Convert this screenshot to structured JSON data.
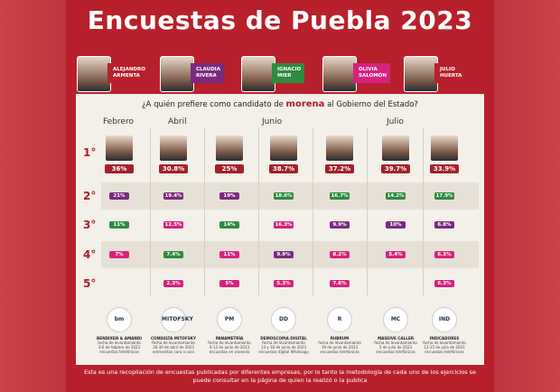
{
  "title": "Encuestas de Puebla 2023",
  "candidates": [
    {
      "name": "ALEJANDRO\nARMENTA",
      "color": "#b8202b"
    },
    {
      "name": "CLAUDIA\nRIVERA",
      "color": "#7a2a7e"
    },
    {
      "name": "IGNACIO\nMIER",
      "color": "#2e8b3e"
    },
    {
      "name": "OLIVIA\nSALOMÓN",
      "color": "#d6227f"
    },
    {
      "name": "JULIO\nHUERTA",
      "color": "#b8202b"
    }
  ],
  "question": {
    "pre": "¿A quién prefiere como candidato de ",
    "party": "morena",
    "post": " al Gobierno del Estado?"
  },
  "months": [
    "Febrero",
    "Abril",
    "Junio",
    "Julio"
  ],
  "ranks": [
    "1°",
    "2°",
    "3°",
    "4°",
    "5°"
  ],
  "columns": [
    {
      "first": "36%",
      "second": "21%",
      "third": "11%",
      "fourth": "7%",
      "fifth": "",
      "logo": "bm",
      "pollster": "BENDIXEN & AMANDI",
      "line1": "fecha de levantamiento",
      "line2": "3-6 de febrero de 2023",
      "line3": "encuestas telefónicas"
    },
    {
      "first": "30.8%",
      "second": "19.4%",
      "third": "12.5%",
      "fourth": "7.4%",
      "fifth": "2.3%",
      "logo": "MITOFSKY",
      "pollster": "CONSULTA MITOFSKY",
      "line1": "fecha de levantamiento",
      "line2": "26-30 de abril de 2023",
      "line3": "entrevistas cara a cara"
    },
    {
      "first": "25%",
      "second": "19%",
      "third": "14%",
      "fourth": "11%",
      "fifth": "5%",
      "logo": "PM",
      "pollster": "PANAMETRÍA",
      "line1": "fecha de levantamiento",
      "line2": "9-13 de junio de 2023",
      "line3": "encuestas en vivienda"
    },
    {
      "first": "38.7%",
      "second": "18.6%",
      "third": "16.3%",
      "fourth": "9.9%",
      "fifth": "5.3%",
      "logo": "DD",
      "pollster": "DEMOSCOPIA DIGITAL",
      "line1": "fecha de levantamiento",
      "line2": "14 y 18 de junio de 2023",
      "line3": "encuestas digital Whatsapp"
    },
    {
      "first": "37.2%",
      "second": "16.7%",
      "third": "9.9%",
      "fourth": "8.2%",
      "fifth": "7.6%",
      "logo": "R",
      "pollster": "RUBRUM",
      "line1": "fecha de levantamiento",
      "line2": "19 de junio de 2023",
      "line3": "encuestas telefónicas"
    },
    {
      "first": "39.7%",
      "second": "14.2%",
      "third": "10%",
      "fourth": "5.4%",
      "fifth": "",
      "logo": "MC",
      "pollster": "MASSIVE CALLER",
      "line1": "fecha de levantamiento",
      "line2": "5 de julio de 2023",
      "line3": "encuestas telefónicas"
    },
    {
      "first": "33.9%",
      "second": "17.9%",
      "third": "6.8%",
      "fourth": "6.3%",
      "fifth": "6.3%",
      "logo": "IND",
      "pollster": "INDICADORES",
      "line1": "fecha de levantamiento",
      "line2": "12-15 de julio de 2023",
      "line3": "encuestas telefónicas"
    }
  ],
  "footer": "Esta es una recopilación de encuestas publicadas por diferentes empresas, por lo tanto la metodología de cada uno de los ejercicios se puede consultar en la página de quien la realizó o la publica"
}
